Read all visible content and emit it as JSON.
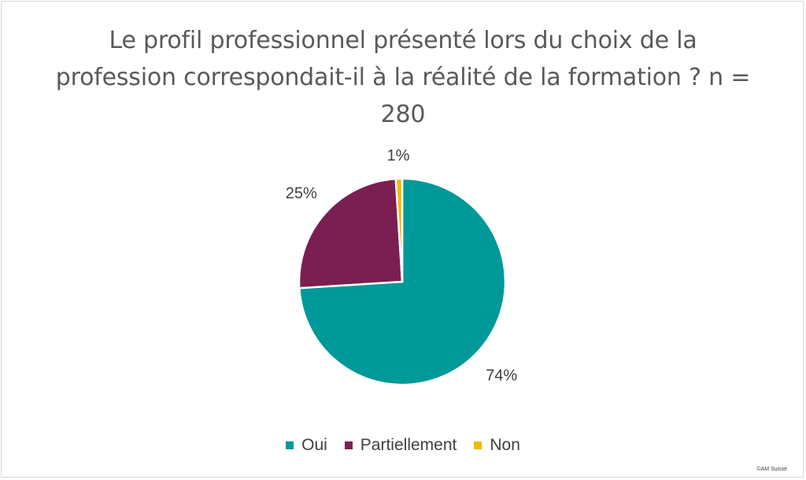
{
  "chart_data": {
    "type": "pie",
    "title": "Le profil professionnel présenté lors du choix de la profession correspondait-il à la réalité de la formation ? n = 280",
    "categories": [
      "Oui",
      "Partiellement",
      "Non"
    ],
    "values": [
      74,
      25,
      1
    ],
    "data_labels": [
      "74%",
      "25%",
      "1%"
    ],
    "colors": [
      "#009999",
      "#7b1f52",
      "#f5b800"
    ],
    "legend_position": "bottom"
  },
  "credit": "©AM Suisse"
}
